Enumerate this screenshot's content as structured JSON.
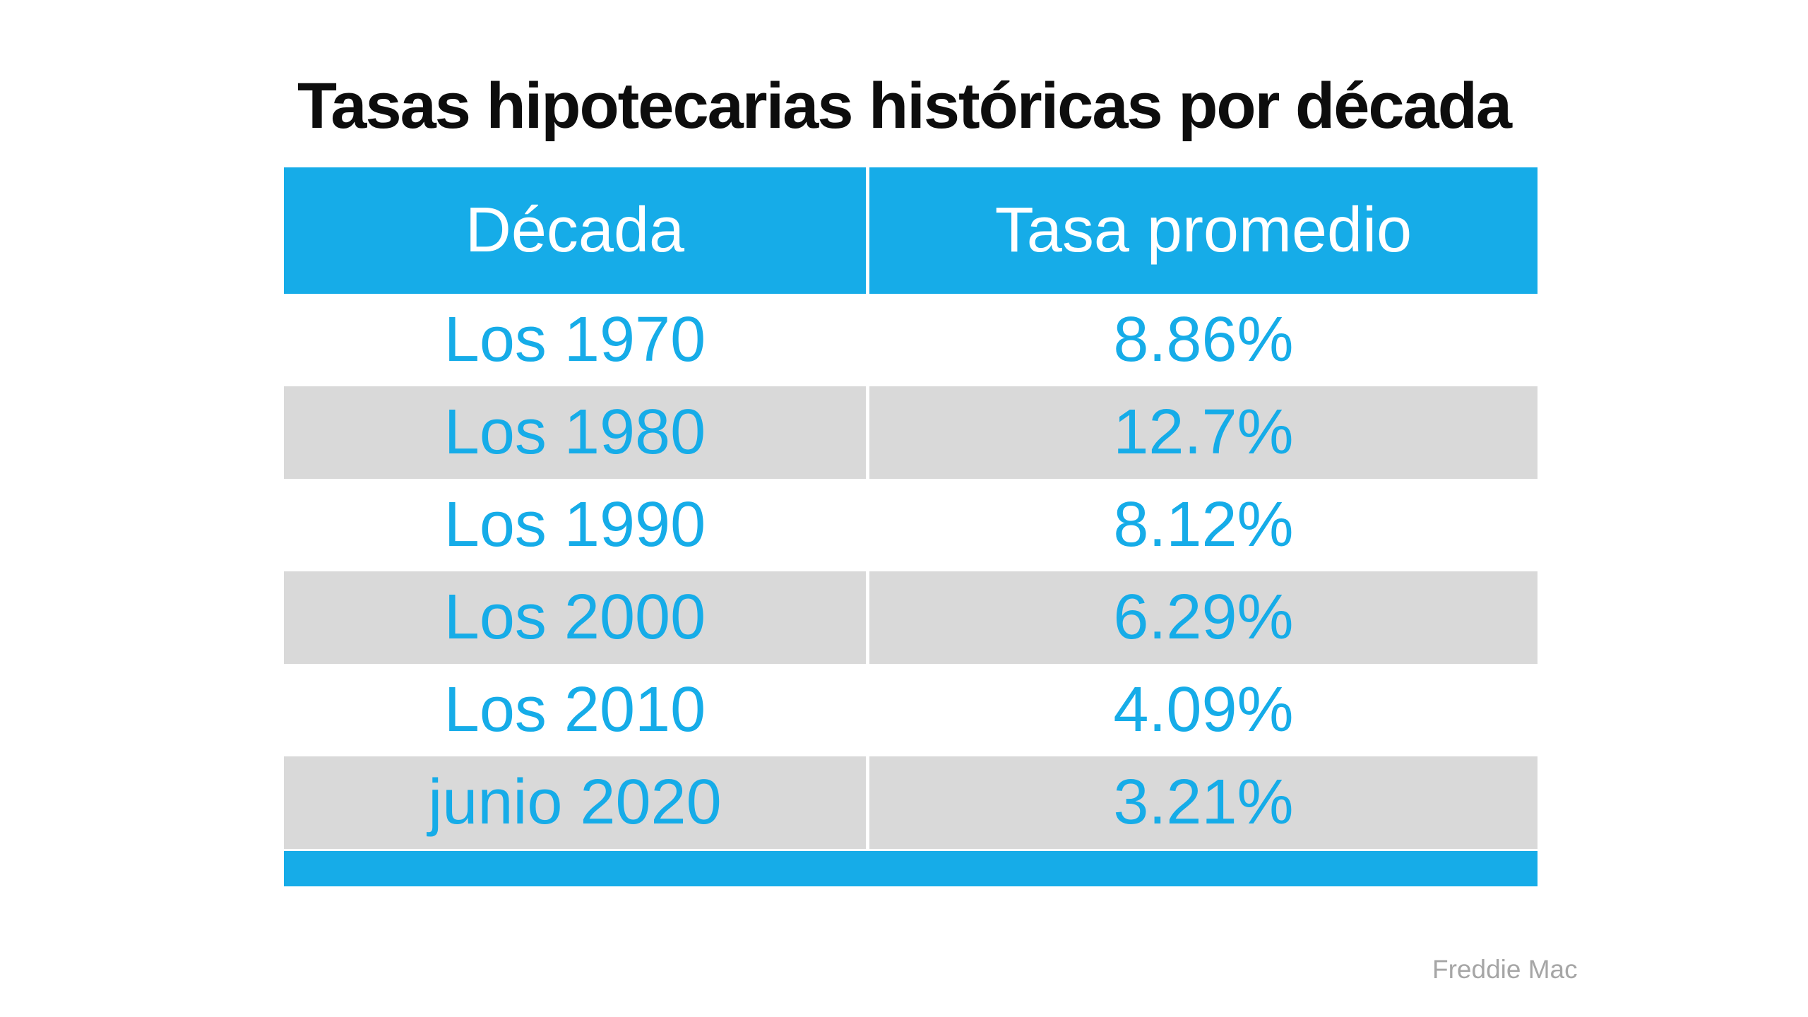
{
  "title": "Tasas hipotecarias históricas por década",
  "source": "Freddie Mac",
  "colors": {
    "accent_blue": "#16ACE8",
    "row_gray": "#D9D9D9",
    "title_black": "#0d0d0d",
    "source_gray": "#A6A6A6"
  },
  "table": {
    "headers": [
      {
        "label": "Década"
      },
      {
        "label": "Tasa promedio"
      }
    ],
    "rows": [
      {
        "decade": "Los 1970",
        "rate": "8.86%"
      },
      {
        "decade": "Los 1980",
        "rate": "12.7%"
      },
      {
        "decade": "Los 1990",
        "rate": "8.12%"
      },
      {
        "decade": "Los 2000",
        "rate": "6.29%"
      },
      {
        "decade": "Los 2010",
        "rate": "4.09%"
      },
      {
        "decade": "junio 2020",
        "rate": "3.21%"
      }
    ]
  },
  "chart_data": {
    "type": "table",
    "title": "Tasas hipotecarias históricas por década",
    "columns": [
      "Década",
      "Tasa promedio"
    ],
    "categories": [
      "Los 1970",
      "Los 1980",
      "Los 1990",
      "Los 2000",
      "Los 2010",
      "junio 2020"
    ],
    "values": [
      8.86,
      12.7,
      8.12,
      6.29,
      4.09,
      3.21
    ],
    "value_unit": "%",
    "source": "Freddie Mac",
    "layout_hints": {
      "header_fill": "#16ACE8",
      "alternating_row_fill": [
        "#FFFFFF",
        "#D9D9D9"
      ],
      "footer_bar_fill": "#16ACE8",
      "text_color": "#16ACE8"
    }
  }
}
